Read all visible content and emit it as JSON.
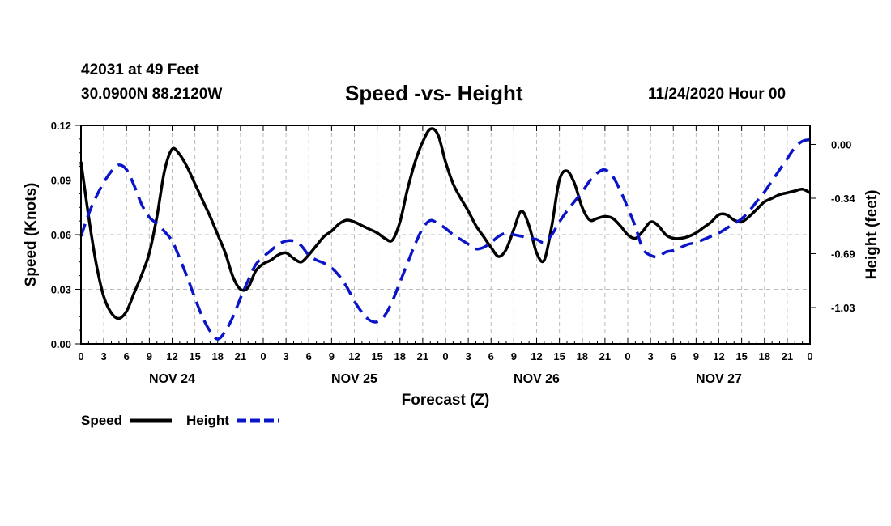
{
  "header": {
    "station": "42031 at 49 Feet",
    "coords": "30.0900N 88.2120W",
    "title": "Speed -vs- Height",
    "date": "11/24/2020 Hour 00"
  },
  "chart_data": {
    "type": "line",
    "title": "Speed -vs- Height",
    "xlabel": "Forecast (Z)",
    "ylabel_left": "Speed (Knots)",
    "ylabel_right": "Height (feet)",
    "x_unit": "forecast hour",
    "xlim": [
      0,
      96
    ],
    "ylim_left": [
      0,
      0.12
    ],
    "ylim_right": [
      -1.26,
      0.12
    ],
    "yticks_left": [
      "0.00",
      "0.03",
      "0.06",
      "0.09",
      "0.12"
    ],
    "yticks_left_values": [
      0,
      0.03,
      0.06,
      0.09,
      0.12
    ],
    "yticks_right": [
      "0.00",
      "-0.34",
      "-0.69",
      "-1.03"
    ],
    "yticks_right_values": [
      0,
      -0.34,
      -0.69,
      -1.03
    ],
    "xtick_labels": [
      "0",
      "3",
      "6",
      "9",
      "12",
      "15",
      "18",
      "21",
      "0",
      "3",
      "6",
      "9",
      "12",
      "15",
      "18",
      "21",
      "0",
      "3",
      "6",
      "9",
      "12",
      "15",
      "18",
      "21",
      "0",
      "3",
      "6",
      "9",
      "12",
      "15",
      "18",
      "21",
      "0"
    ],
    "day_labels": [
      "NOV 24",
      "NOV 25",
      "NOV 26",
      "NOV 27"
    ],
    "grid": true,
    "colors": {
      "speed": "#000000",
      "height": "#0a14c8"
    },
    "series": [
      {
        "name": "Speed",
        "axis": "left",
        "x": [
          0,
          1,
          2,
          3,
          4,
          5,
          6,
          7,
          8,
          9,
          10,
          11,
          12,
          13,
          14,
          15,
          16,
          17,
          18,
          19,
          20,
          21,
          22,
          23,
          24,
          25,
          26,
          27,
          28,
          29,
          30,
          31,
          32,
          33,
          34,
          35,
          36,
          37,
          38,
          39,
          40,
          41,
          42,
          43,
          44,
          45,
          46,
          47,
          48,
          49,
          50,
          51,
          52,
          53,
          54,
          55,
          56,
          57,
          58,
          59,
          60,
          61,
          62,
          63,
          64,
          65,
          66,
          67,
          68,
          69,
          70,
          71,
          72,
          73,
          74,
          75,
          76,
          77,
          78,
          79,
          80,
          81,
          82,
          83,
          84,
          85,
          86,
          87,
          88,
          89,
          90,
          91,
          92,
          93,
          94,
          95,
          96
        ],
        "values": [
          0.1,
          0.07,
          0.044,
          0.026,
          0.017,
          0.014,
          0.018,
          0.028,
          0.038,
          0.05,
          0.07,
          0.095,
          0.107,
          0.104,
          0.097,
          0.088,
          0.079,
          0.07,
          0.06,
          0.05,
          0.037,
          0.03,
          0.031,
          0.04,
          0.044,
          0.046,
          0.049,
          0.05,
          0.047,
          0.045,
          0.049,
          0.054,
          0.059,
          0.062,
          0.066,
          0.068,
          0.067,
          0.065,
          0.063,
          0.061,
          0.058,
          0.057,
          0.067,
          0.085,
          0.1,
          0.111,
          0.118,
          0.115,
          0.1,
          0.088,
          0.08,
          0.073,
          0.065,
          0.059,
          0.053,
          0.048,
          0.052,
          0.063,
          0.073,
          0.065,
          0.05,
          0.046,
          0.065,
          0.09,
          0.095,
          0.088,
          0.075,
          0.068,
          0.069,
          0.07,
          0.069,
          0.065,
          0.06,
          0.058,
          0.062,
          0.067,
          0.065,
          0.06,
          0.058,
          0.058,
          0.059,
          0.061,
          0.064,
          0.067,
          0.071,
          0.071,
          0.068,
          0.067,
          0.07,
          0.074,
          0.078,
          0.08,
          0.082,
          0.083,
          0.084,
          0.085,
          0.083
        ]
      },
      {
        "name": "Height",
        "axis": "right",
        "x": [
          0,
          1,
          2,
          3,
          4,
          5,
          6,
          7,
          8,
          9,
          10,
          11,
          12,
          13,
          14,
          15,
          16,
          17,
          18,
          19,
          20,
          21,
          22,
          23,
          24,
          25,
          26,
          27,
          28,
          29,
          30,
          31,
          32,
          33,
          34,
          35,
          36,
          37,
          38,
          39,
          40,
          41,
          42,
          43,
          44,
          45,
          46,
          47,
          48,
          49,
          50,
          51,
          52,
          53,
          54,
          55,
          56,
          57,
          58,
          59,
          60,
          61,
          62,
          63,
          64,
          65,
          66,
          67,
          68,
          69,
          70,
          71,
          72,
          73,
          74,
          75,
          76,
          77,
          78,
          79,
          80,
          81,
          82,
          83,
          84,
          85,
          86,
          87,
          88,
          89,
          90,
          91,
          92,
          93,
          94,
          95,
          96
        ],
        "values": [
          -0.58,
          -0.44,
          -0.33,
          -0.24,
          -0.17,
          -0.13,
          -0.16,
          -0.26,
          -0.38,
          -0.46,
          -0.5,
          -0.55,
          -0.61,
          -0.72,
          -0.84,
          -0.97,
          -1.09,
          -1.18,
          -1.23,
          -1.18,
          -1.09,
          -0.97,
          -0.86,
          -0.76,
          -0.71,
          -0.67,
          -0.63,
          -0.61,
          -0.61,
          -0.64,
          -0.7,
          -0.73,
          -0.75,
          -0.78,
          -0.83,
          -0.9,
          -0.99,
          -1.06,
          -1.11,
          -1.12,
          -1.08,
          -0.99,
          -0.87,
          -0.75,
          -0.63,
          -0.53,
          -0.48,
          -0.5,
          -0.53,
          -0.57,
          -0.6,
          -0.63,
          -0.66,
          -0.65,
          -0.62,
          -0.58,
          -0.56,
          -0.57,
          -0.58,
          -0.59,
          -0.6,
          -0.62,
          -0.57,
          -0.49,
          -0.42,
          -0.36,
          -0.3,
          -0.23,
          -0.18,
          -0.16,
          -0.2,
          -0.29,
          -0.4,
          -0.52,
          -0.66,
          -0.7,
          -0.71,
          -0.68,
          -0.67,
          -0.65,
          -0.63,
          -0.62,
          -0.6,
          -0.58,
          -0.56,
          -0.53,
          -0.5,
          -0.47,
          -0.42,
          -0.36,
          -0.3,
          -0.23,
          -0.16,
          -0.09,
          -0.02,
          0.02,
          0.03
        ]
      }
    ],
    "legend": [
      {
        "label": "Speed",
        "style": "solid"
      },
      {
        "label": "Height",
        "style": "dashed"
      }
    ]
  }
}
